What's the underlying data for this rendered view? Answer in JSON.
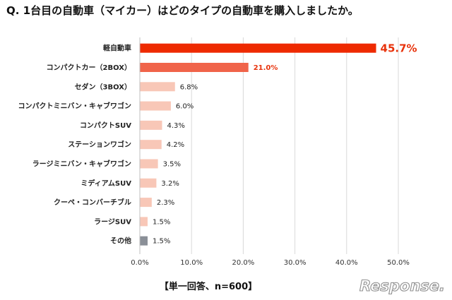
{
  "title": "Q. 1台目の自動車（マイカー）はどのタイプの自動車を購入しましたか。",
  "footnote": "【単一回答、n=600】",
  "logo_text": "Response.",
  "colors": {
    "top_bar": "#ee2a00",
    "second_bar": "#f0644a",
    "other_bars": "#f8c7b7",
    "other_category": "#8a8f97",
    "highlight_text": "#e8330c"
  },
  "chart_data": {
    "type": "bar",
    "orientation": "horizontal",
    "title": "Q. 1台目の自動車（マイカー）はどのタイプの自動車を購入しましたか。",
    "xlabel": "",
    "ylabel": "",
    "categories": [
      "軽自動車",
      "コンパクトカー（2BOX）",
      "セダン（3BOX）",
      "コンパクトミニバン・キャブワゴン",
      "コンパクトSUV",
      "ステーションワゴン",
      "ラージミニバン・キャブワゴン",
      "ミディアムSUV",
      "クーペ・コンバーチブル",
      "ラージSUV",
      "その他"
    ],
    "values": [
      45.7,
      21.0,
      6.8,
      6.0,
      4.3,
      4.2,
      3.5,
      3.2,
      2.3,
      1.5,
      1.5
    ],
    "value_labels": [
      "45.7%",
      "21.0%",
      "6.8%",
      "6.0%",
      "4.3%",
      "4.2%",
      "3.5%",
      "3.2%",
      "2.3%",
      "1.5%",
      "1.5%"
    ],
    "xlim": [
      0,
      50
    ],
    "xticks": [
      0,
      10,
      20,
      30,
      40,
      50
    ],
    "xtick_labels": [
      "0.0%",
      "10.0%",
      "20.0%",
      "30.0%",
      "40.0%",
      "50.0%"
    ],
    "grid": "vertical",
    "legend": "none"
  }
}
